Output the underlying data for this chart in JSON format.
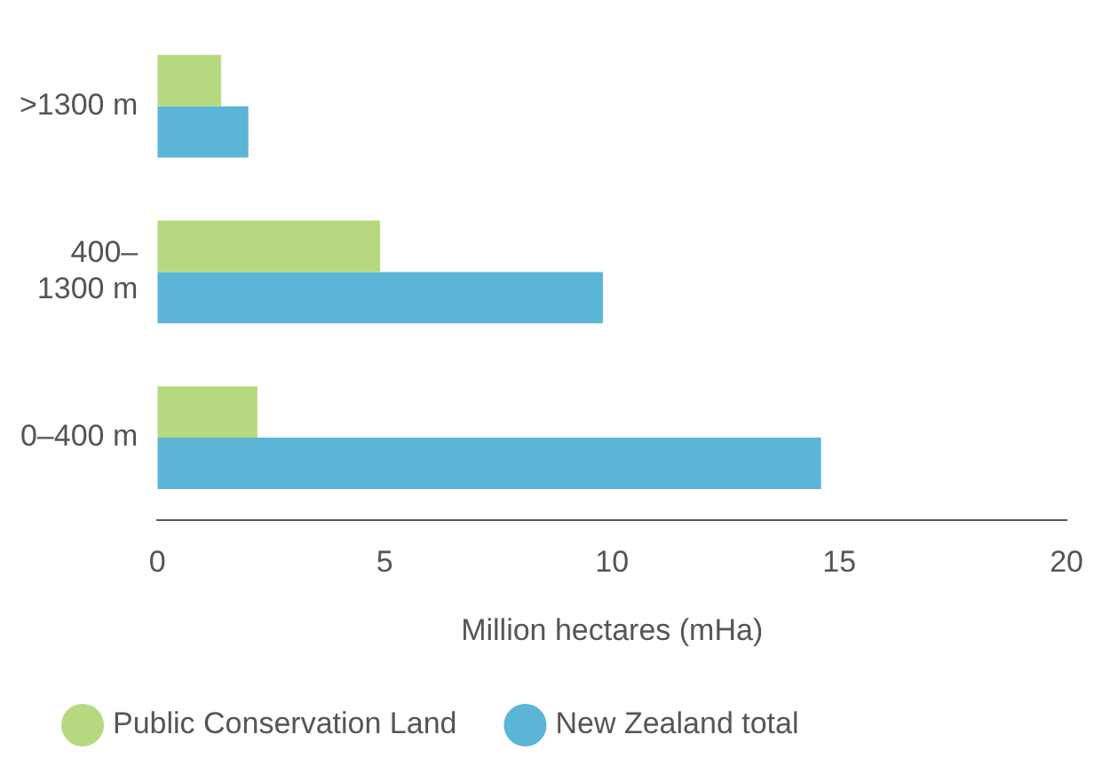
{
  "chart_data": {
    "type": "bar",
    "orientation": "horizontal",
    "categories": [
      ">1300 m",
      "400–1300 m",
      "0–400 m"
    ],
    "series": [
      {
        "name": "Public Conservation Land",
        "color": "#b6d97f",
        "values": [
          1.4,
          4.9,
          2.2
        ]
      },
      {
        "name": "New Zealand total",
        "color": "#5bb5d7",
        "values": [
          2.0,
          9.8,
          14.6
        ]
      }
    ],
    "xlabel": "Million hectares (mHa)",
    "xlim": [
      0,
      20
    ],
    "xticks": [
      0,
      5,
      10,
      15,
      20
    ],
    "grid": false,
    "legend": "bottom",
    "marker": "circle"
  }
}
